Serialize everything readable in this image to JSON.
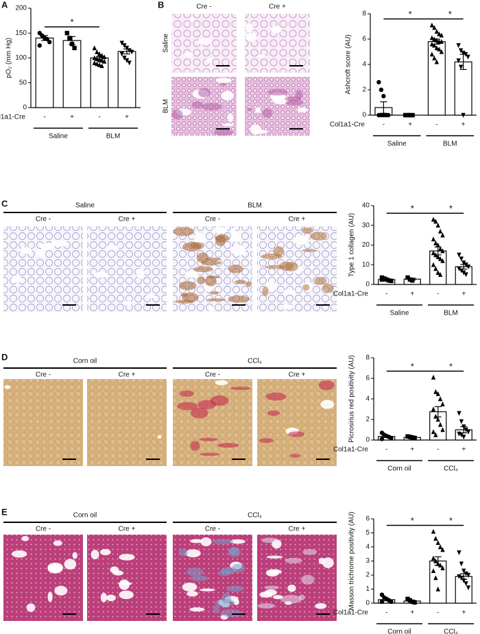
{
  "chart_data": [
    {
      "type": "bar",
      "panel": "A",
      "ylabel": "pO₂ (mm Hg)",
      "ylim": [
        0,
        200
      ],
      "yticks": [
        0,
        50,
        100,
        150,
        200
      ],
      "categories": [
        "-",
        "+",
        "-",
        "+"
      ],
      "category_row_label": "Col1a1-Cre",
      "groups": [
        "Saline",
        "BLM"
      ],
      "markers": [
        "circle",
        "square",
        "triangle",
        "triangle-down"
      ],
      "values": [
        140,
        135,
        100,
        113
      ],
      "errors": [
        5,
        8,
        3,
        5
      ],
      "points": [
        [
          150,
          145,
          140,
          138,
          132,
          125
        ],
        [
          150,
          140,
          128,
          120
        ],
        [
          120,
          112,
          108,
          105,
          102,
          100,
          98,
          96,
          95,
          93,
          90,
          88,
          86,
          84
        ],
        [
          130,
          125,
          120,
          115,
          112,
          108,
          100,
          95,
          90
        ]
      ],
      "significance": [
        {
          "between": [
            0,
            2
          ],
          "label": "*"
        }
      ]
    },
    {
      "type": "bar",
      "panel": "B",
      "ylabel": "Ashcroft score (AU)",
      "ylim": [
        0,
        8
      ],
      "yticks": [
        0,
        2,
        4,
        6,
        8
      ],
      "categories": [
        "-",
        "+",
        "-",
        "+"
      ],
      "category_row_label": "Col1a1-Cre",
      "groups": [
        "Saline",
        "BLM"
      ],
      "markers": [
        "circle",
        "square",
        "triangle",
        "triangle-down"
      ],
      "values": [
        0.6,
        0,
        5.8,
        4.2
      ],
      "errors": [
        0.45,
        0,
        0.2,
        0.6
      ],
      "points": [
        [
          2.6,
          2.0,
          1.5,
          0,
          0,
          0,
          0,
          0
        ],
        [
          0,
          0,
          0,
          0
        ],
        [
          7.1,
          6.9,
          6.6,
          6.4,
          6.3,
          6.1,
          6.0,
          5.9,
          5.8,
          5.8,
          5.6,
          5.5,
          5.3,
          5.2,
          5.0,
          4.8,
          4.5,
          4.2
        ],
        [
          5.5,
          5.1,
          4.9,
          4.8,
          4.6,
          4.3,
          3.8,
          0
        ]
      ],
      "significance": [
        {
          "between": [
            0,
            2
          ],
          "label": "*"
        },
        {
          "between": [
            2,
            3
          ],
          "label": "*"
        }
      ]
    },
    {
      "type": "bar",
      "panel": "C",
      "ylabel": "Type 1 collagen (AU)",
      "ylim": [
        0,
        40
      ],
      "yticks": [
        0,
        10,
        20,
        30,
        40
      ],
      "categories": [
        "-",
        "+",
        "-",
        "+"
      ],
      "category_row_label": "Col1a1-Cre",
      "groups": [
        "Saline",
        "BLM"
      ],
      "markers": [
        "square",
        "square",
        "triangle",
        "triangle-down"
      ],
      "values": [
        2.5,
        2.7,
        17,
        9
      ],
      "errors": [
        0.4,
        0.5,
        2,
        1.2
      ],
      "points": [
        [
          3.5,
          3,
          2.5,
          2,
          1.8,
          2.5
        ],
        [
          3.5,
          2.5,
          2
        ],
        [
          33,
          32,
          30,
          27,
          25,
          23,
          21,
          20,
          18,
          17,
          16,
          15,
          14,
          13,
          12,
          10,
          8,
          6,
          5
        ],
        [
          15,
          13,
          11,
          10,
          9,
          8,
          7,
          6,
          5
        ]
      ],
      "significance": [
        {
          "between": [
            0,
            2
          ],
          "label": "*"
        },
        {
          "between": [
            2,
            3
          ],
          "label": "*"
        }
      ]
    },
    {
      "type": "bar",
      "panel": "D",
      "ylabel": "Picrosirius red positivity (AU)",
      "ylim": [
        0,
        8
      ],
      "yticks": [
        0,
        2,
        4,
        6,
        8
      ],
      "categories": [
        "-",
        "+",
        "-",
        "+"
      ],
      "category_row_label": "Col1a1-Cre",
      "groups": [
        "Corn oil",
        "CCl₄"
      ],
      "markers": [
        "circle",
        "square",
        "triangle",
        "triangle-down"
      ],
      "values": [
        0.35,
        0.25,
        2.75,
        1.0
      ],
      "errors": [
        0.1,
        0.05,
        0.5,
        0.3
      ],
      "points": [
        [
          0.7,
          0.5,
          0.4,
          0.3,
          0.2,
          0.1
        ],
        [
          0.35,
          0.3,
          0.25,
          0.2
        ],
        [
          6.1,
          4.7,
          4.5,
          4.0,
          3.5,
          3.0,
          2.3,
          2.0,
          1.5,
          1.0,
          0.8,
          0.5
        ],
        [
          2.6,
          1.8,
          1.3,
          1.0,
          0.8,
          0.6,
          0.5,
          0.3
        ]
      ],
      "significance": [
        {
          "between": [
            0,
            2
          ],
          "label": "*"
        },
        {
          "between": [
            2,
            3
          ],
          "label": "*"
        }
      ]
    },
    {
      "type": "bar",
      "panel": "E",
      "ylabel": "Masson trichrome positivity (AU)",
      "ylim": [
        0,
        6
      ],
      "yticks": [
        0,
        1,
        2,
        3,
        4,
        5,
        6
      ],
      "categories": [
        "-",
        "+",
        "-",
        "+"
      ],
      "category_row_label": "Col1a1-Cre",
      "groups": [
        "Corn oil",
        "CCl₄"
      ],
      "markers": [
        "circle",
        "square",
        "triangle",
        "triangle-down"
      ],
      "values": [
        0.25,
        0.15,
        3.0,
        1.9
      ],
      "errors": [
        0.08,
        0.05,
        0.3,
        0.2
      ],
      "points": [
        [
          0.6,
          0.4,
          0.3,
          0.2,
          0.1,
          0.1
        ],
        [
          0.3,
          0.2,
          0.1,
          0.05
        ],
        [
          5.1,
          4.6,
          4.3,
          4.0,
          3.8,
          3.2,
          3.0,
          2.8,
          2.7,
          2.5,
          2.3,
          1.8,
          1.0
        ],
        [
          3.6,
          2.8,
          2.3,
          2.1,
          2.0,
          1.9,
          1.8,
          1.6,
          1.4,
          1.1
        ]
      ],
      "significance": [
        {
          "between": [
            0,
            2
          ],
          "label": "*"
        },
        {
          "between": [
            2,
            3
          ],
          "label": "*"
        }
      ]
    }
  ],
  "micrographs": [
    {
      "columns": [
        "Cre -",
        "Cre +"
      ],
      "rows": [
        "Saline",
        "BLM"
      ]
    },
    {
      "groups": [
        {
          "label": "Saline",
          "columns": [
            "Cre -",
            "Cre +"
          ]
        },
        {
          "label": "BLM",
          "columns": [
            "Cre -",
            "Cre +"
          ]
        }
      ]
    },
    {
      "groups": [
        {
          "label": "Corn oil",
          "columns": [
            "Cre -",
            "Cre +"
          ]
        },
        {
          "label": "CCl₄",
          "columns": [
            "Cre -",
            "Cre +"
          ]
        }
      ]
    },
    {
      "groups": [
        {
          "label": "Corn oil",
          "columns": [
            "Cre -",
            "Cre +"
          ]
        },
        {
          "label": "CCl₄",
          "columns": [
            "Cre -",
            "Cre +"
          ]
        }
      ]
    }
  ]
}
